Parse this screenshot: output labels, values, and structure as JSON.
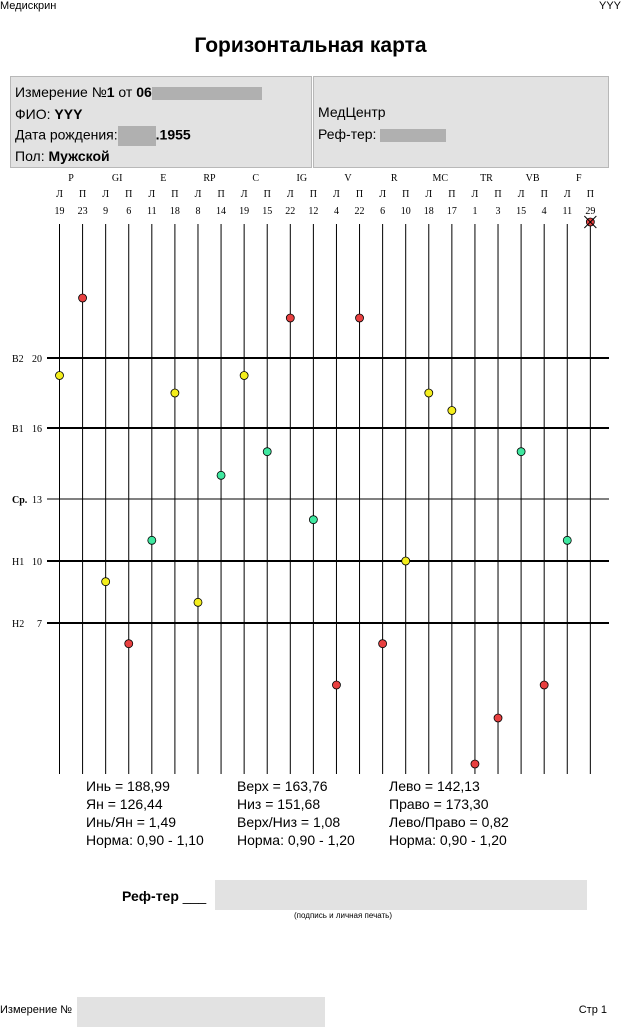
{
  "header": {
    "left": "Медискрин",
    "right": "YYY"
  },
  "title": "Горизонтальная карта",
  "info_left": {
    "measurement_label": "Измерение №",
    "measurement_number": "1",
    "measurement_from": " от ",
    "measurement_date_visible": "06",
    "fio_label": "ФИО:",
    "fio_value": "YYY",
    "dob_label": "Дата рождения:",
    "dob_visible": ".1955",
    "sex_label": "Пол:",
    "sex_value": "Мужской"
  },
  "info_right": {
    "center": "МедЦентр",
    "ref_label": "Реф-тер:"
  },
  "chart_data": {
    "type": "scatter",
    "meridians": [
      "P",
      "GI",
      "E",
      "RP",
      "C",
      "IG",
      "V",
      "R",
      "MC",
      "TR",
      "VB",
      "F"
    ],
    "sides": [
      "Л",
      "П",
      "Л",
      "П",
      "Л",
      "П",
      "Л",
      "П",
      "Л",
      "П",
      "Л",
      "П",
      "Л",
      "П",
      "Л",
      "П",
      "Л",
      "П",
      "Л",
      "П",
      "Л",
      "П",
      "Л",
      "П"
    ],
    "values": [
      19,
      23,
      9,
      6,
      11,
      18,
      8,
      14,
      19,
      15,
      22,
      12,
      4,
      22,
      6,
      10,
      18,
      17,
      1,
      3,
      15,
      4,
      11,
      29
    ],
    "colors": {
      "red": "#e84040",
      "yellow": "#f4ee1c",
      "green": "#3fe8a0"
    },
    "point_colors": [
      "yellow",
      "red",
      "yellow",
      "red",
      "green",
      "yellow",
      "yellow",
      "green",
      "yellow",
      "green",
      "red",
      "green",
      "red",
      "red",
      "red",
      "yellow",
      "yellow",
      "yellow",
      "red",
      "red",
      "green",
      "red",
      "green",
      "red"
    ],
    "overflow_marker_index": 23,
    "ref_lines": [
      {
        "label": "В2",
        "value": 20
      },
      {
        "label": "В1",
        "value": 16
      },
      {
        "label": "Ср.",
        "value": 13
      },
      {
        "label": "Н1",
        "value": 10
      },
      {
        "label": "Н2",
        "value": 7
      }
    ]
  },
  "stats": {
    "col1": [
      "Инь = 188,99",
      "Ян = 126,44",
      "Инь/Ян = 1,49",
      "Норма: 0,90 - 1,10"
    ],
    "col2": [
      "Верх = 163,76",
      "Низ = 151,68",
      "Верх/Низ = 1,08",
      "Норма: 0,90 - 1,20"
    ],
    "col3": [
      "Лево = 142,13",
      "Право = 173,30",
      "Лево/Право = 0,82",
      "Норма: 0,90 - 1,20"
    ]
  },
  "signature": {
    "label": "Реф-тер",
    "blank": "___",
    "caption": "(подпись и личная печать)"
  },
  "footer": {
    "left": "Измерение №",
    "right": "Стр 1"
  }
}
